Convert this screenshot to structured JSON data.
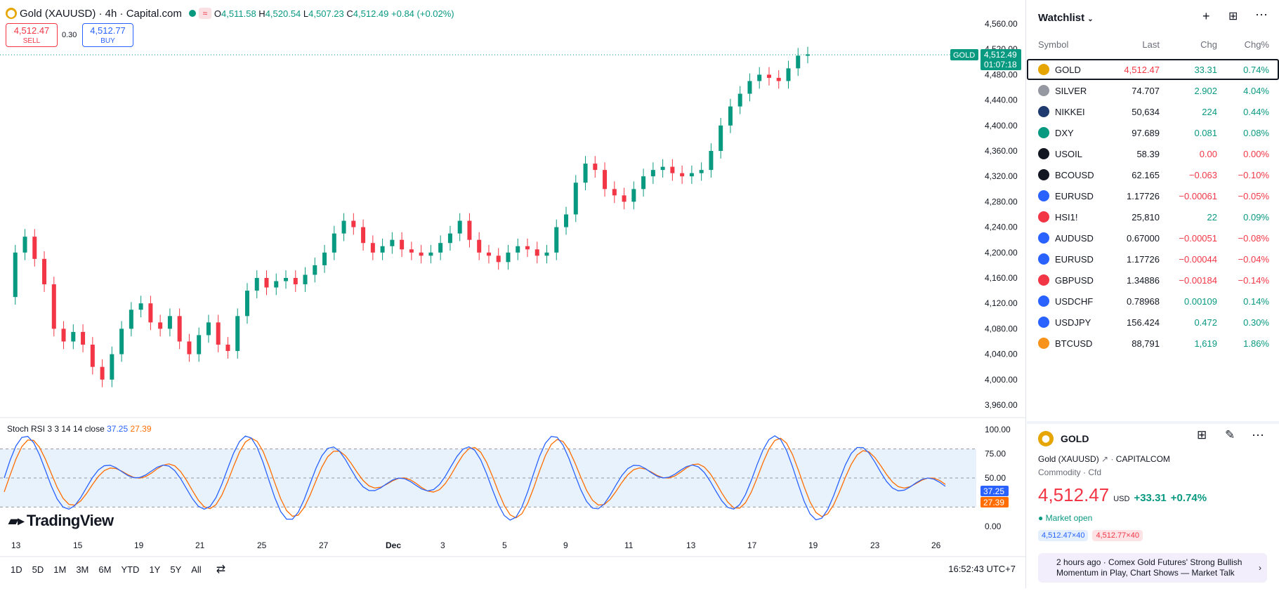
{
  "header": {
    "title": "Gold (XAUUSD) · 4h · Capital.com",
    "ohlc": {
      "o_label": "O",
      "o": "4,511.58",
      "h_label": "H",
      "h": "4,520.54",
      "l_label": "L",
      "l": "4,507.23",
      "c_label": "C",
      "c": "4,512.49",
      "change": "+0.84 (+0.02%)"
    },
    "sell_price": "4,512.47",
    "sell_label": "SELL",
    "spread": "0.30",
    "buy_price": "4,512.77",
    "buy_label": "BUY"
  },
  "price_axis": [
    "4,560.00",
    "4,520.00",
    "4,480.00",
    "4,440.00",
    "4,400.00",
    "4,360.00",
    "4,320.00",
    "4,280.00",
    "4,240.00",
    "4,200.00",
    "4,160.00",
    "4,120.00",
    "4,080.00",
    "4,040.00",
    "4,000.00",
    "3,960.00"
  ],
  "price_tag": {
    "symbol": "GOLD",
    "price": "4,512.49",
    "countdown": "01:07:18"
  },
  "stoch": {
    "label": "Stoch RSI 3 3 14 14 close",
    "k": "37.25",
    "d": "27.39",
    "axis": [
      "100.00",
      "75.00",
      "50.00",
      "25.00",
      "0.00"
    ]
  },
  "time_axis": [
    "13",
    "15",
    "19",
    "21",
    "25",
    "27",
    "Dec",
    "3",
    "5",
    "9",
    "11",
    "13",
    "17",
    "19",
    "23",
    "26"
  ],
  "logo": "TradingView",
  "timeframes": [
    "1D",
    "5D",
    "1M",
    "3M",
    "6M",
    "YTD",
    "1Y",
    "5Y",
    "All"
  ],
  "clock": "16:52:43 UTC+7",
  "watchlist": {
    "title": "Watchlist",
    "cols": {
      "symbol": "Symbol",
      "last": "Last",
      "chg": "Chg",
      "chgp": "Chg%"
    },
    "rows": [
      {
        "sym": "GOLD",
        "last": "4,512.47",
        "chg": "33.31",
        "chgp": "0.74%",
        "dir": "pos",
        "color": "#e6a500"
      },
      {
        "sym": "SILVER",
        "last": "74.707",
        "chg": "2.902",
        "chgp": "4.04%",
        "dir": "pos",
        "color": "#9598a1"
      },
      {
        "sym": "NIKKEI",
        "last": "50,634",
        "chg": "224",
        "chgp": "0.44%",
        "dir": "pos",
        "color": "#1e3a6e"
      },
      {
        "sym": "DXY",
        "last": "97.689",
        "chg": "0.081",
        "chgp": "0.08%",
        "dir": "pos",
        "color": "#089981"
      },
      {
        "sym": "USOIL",
        "last": "58.39",
        "chg": "0.00",
        "chgp": "0.00%",
        "dir": "neg",
        "color": "#131722"
      },
      {
        "sym": "BCOUSD",
        "last": "62.165",
        "chg": "−0.063",
        "chgp": "−0.10%",
        "dir": "neg",
        "color": "#131722"
      },
      {
        "sym": "EURUSD",
        "last": "1.17726",
        "chg": "−0.00061",
        "chgp": "−0.05%",
        "dir": "neg",
        "color": "#2962ff"
      },
      {
        "sym": "HSI1!",
        "last": "25,810",
        "chg": "22",
        "chgp": "0.09%",
        "dir": "pos",
        "color": "#f23645"
      },
      {
        "sym": "AUDUSD",
        "last": "0.67000",
        "chg": "−0.00051",
        "chgp": "−0.08%",
        "dir": "neg",
        "color": "#2962ff"
      },
      {
        "sym": "EURUSD",
        "last": "1.17726",
        "chg": "−0.00044",
        "chgp": "−0.04%",
        "dir": "neg",
        "color": "#2962ff"
      },
      {
        "sym": "GBPUSD",
        "last": "1.34886",
        "chg": "−0.00184",
        "chgp": "−0.14%",
        "dir": "neg",
        "color": "#f23645"
      },
      {
        "sym": "USDCHF",
        "last": "0.78968",
        "chg": "0.00109",
        "chgp": "0.14%",
        "dir": "pos",
        "color": "#2962ff"
      },
      {
        "sym": "USDJPY",
        "last": "156.424",
        "chg": "0.472",
        "chgp": "0.30%",
        "dir": "pos",
        "color": "#2962ff"
      },
      {
        "sym": "BTCUSD",
        "last": "88,791",
        "chg": "1,619",
        "chgp": "1.86%",
        "dir": "pos",
        "color": "#f7931a"
      }
    ]
  },
  "detail": {
    "symbol": "GOLD",
    "name": "Gold (XAUUSD)",
    "exchange": "CAPITALCOM",
    "type": "Commodity · Cfd",
    "price": "4,512.47",
    "currency": "USD",
    "change": "+33.31",
    "changep": "+0.74%",
    "status": "Market open",
    "bid": "4,512.47×40",
    "ask": "4,512.77×40",
    "news": "2 hours ago · Comex Gold Futures' Strong Bullish Momentum in Play, Chart Shows — Market Talk"
  }
}
